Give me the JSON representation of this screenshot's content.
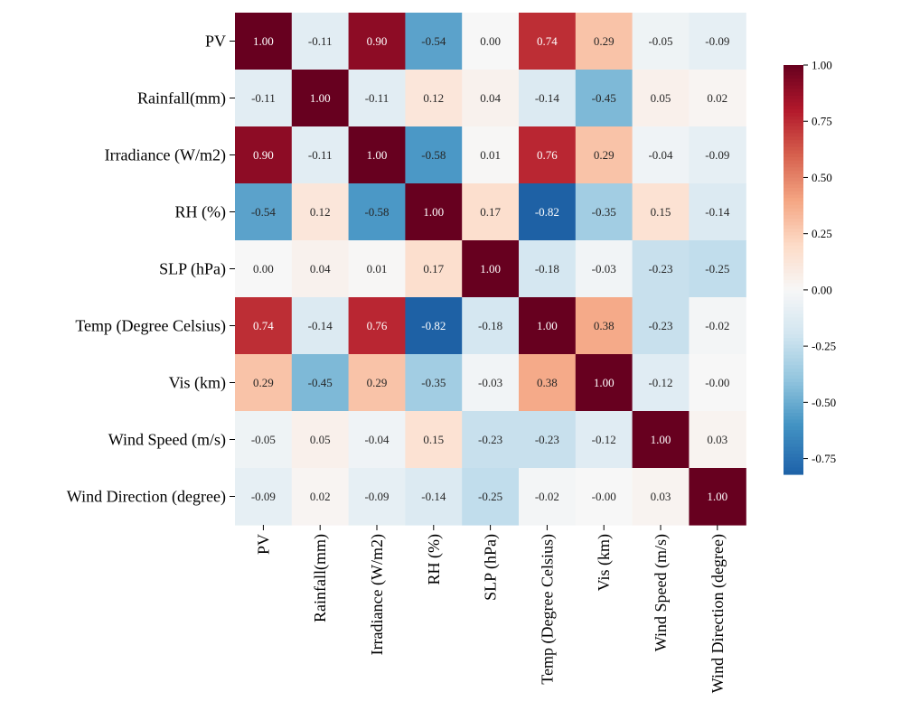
{
  "chart_data": {
    "type": "heatmap",
    "title": "",
    "variables": [
      "PV",
      "Rainfall(mm)",
      "Irradiance (W/m2)",
      "RH (%)",
      "SLP (hPa)",
      "Temp (Degree Celsius)",
      "Vis (km)",
      "Wind Speed (m/s)",
      "Wind Direction (degree)"
    ],
    "matrix": [
      [
        1.0,
        -0.11,
        0.9,
        -0.54,
        0.0,
        0.74,
        0.29,
        -0.05,
        -0.09
      ],
      [
        -0.11,
        1.0,
        -0.11,
        0.12,
        0.04,
        -0.14,
        -0.45,
        0.05,
        0.02
      ],
      [
        0.9,
        -0.11,
        1.0,
        -0.58,
        0.01,
        0.76,
        0.29,
        -0.04,
        -0.09
      ],
      [
        -0.54,
        0.12,
        -0.58,
        1.0,
        0.17,
        -0.82,
        -0.35,
        0.15,
        -0.14
      ],
      [
        0.0,
        0.04,
        0.01,
        0.17,
        1.0,
        -0.18,
        -0.03,
        -0.23,
        -0.25
      ],
      [
        0.74,
        -0.14,
        0.76,
        -0.82,
        -0.18,
        1.0,
        0.38,
        -0.23,
        -0.02
      ],
      [
        0.29,
        -0.45,
        0.29,
        -0.35,
        -0.03,
        0.38,
        1.0,
        -0.12,
        -0.0
      ],
      [
        -0.05,
        0.05,
        -0.04,
        0.15,
        -0.23,
        -0.23,
        -0.12,
        1.0,
        0.03
      ],
      [
        -0.09,
        0.02,
        -0.09,
        -0.14,
        -0.25,
        -0.02,
        -0.0,
        0.03,
        1.0
      ]
    ],
    "annotation_labels": [
      [
        "1.00",
        "-0.11",
        "0.90",
        "-0.54",
        "0.00",
        "0.74",
        "0.29",
        "-0.05",
        "-0.09"
      ],
      [
        "-0.11",
        "1.00",
        "-0.11",
        "0.12",
        "0.04",
        "-0.14",
        "-0.45",
        "0.05",
        "0.02"
      ],
      [
        "0.90",
        "-0.11",
        "1.00",
        "-0.58",
        "0.01",
        "0.76",
        "0.29",
        "-0.04",
        "-0.09"
      ],
      [
        "-0.54",
        "0.12",
        "-0.58",
        "1.00",
        "0.17",
        "-0.82",
        "-0.35",
        "0.15",
        "-0.14"
      ],
      [
        "0.00",
        "0.04",
        "0.01",
        "0.17",
        "1.00",
        "-0.18",
        "-0.03",
        "-0.23",
        "-0.25"
      ],
      [
        "0.74",
        "-0.14",
        "0.76",
        "-0.82",
        "-0.18",
        "1.00",
        "0.38",
        "-0.23",
        "-0.02"
      ],
      [
        "0.29",
        "-0.45",
        "0.29",
        "-0.35",
        "-0.03",
        "0.38",
        "1.00",
        "-0.12",
        "-0.00"
      ],
      [
        "-0.05",
        "0.05",
        "-0.04",
        "0.15",
        "-0.23",
        "-0.23",
        "-0.12",
        "1.00",
        "0.03"
      ],
      [
        "-0.09",
        "0.02",
        "-0.09",
        "-0.14",
        "-0.25",
        "-0.02",
        "-0.00",
        "0.03",
        "1.00"
      ]
    ],
    "colorbar": {
      "range": [
        -0.82,
        1.0
      ],
      "ticks": [
        -0.75,
        -0.5,
        -0.25,
        0.0,
        0.25,
        0.5,
        0.75,
        1.0
      ],
      "tick_labels": [
        "-0.75",
        "-0.50",
        "-0.25",
        "0.00",
        "0.25",
        "0.50",
        "0.75",
        "1.00"
      ],
      "colormap": "RdBu_r",
      "placement": "right"
    },
    "colors": {
      "stops": [
        "#053061",
        "#2166ac",
        "#4393c3",
        "#92c5de",
        "#d1e5f0",
        "#f7f7f7",
        "#fddbc7",
        "#f4a582",
        "#d6604d",
        "#b2182b",
        "#67001f"
      ]
    }
  }
}
